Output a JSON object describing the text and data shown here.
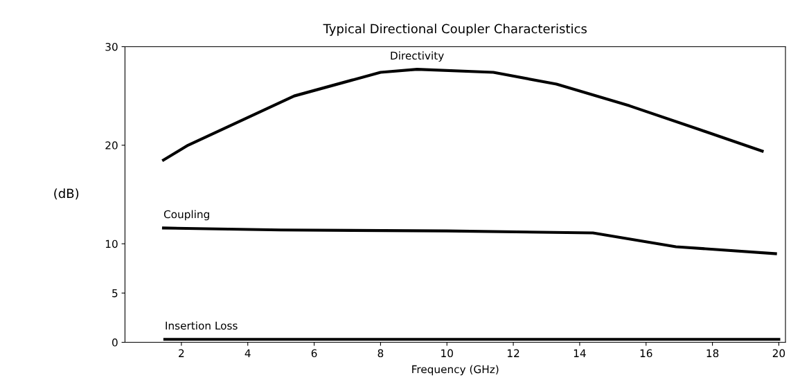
{
  "chart_data": {
    "type": "line",
    "title": "Typical Directional Coupler Characteristics",
    "xlabel": "Frequency (GHz)",
    "ylabel": "(dB)",
    "series": [
      {
        "name": "Directivity",
        "color": "#000000",
        "x": [
          1.46,
          2.2,
          5.4,
          8.0,
          9.1,
          11.4,
          13.3,
          15.5,
          17.6,
          19.5
        ],
        "values": [
          18.5,
          20,
          25,
          27.4,
          27.7,
          27.4,
          26.2,
          24,
          21.6,
          19.4
        ]
      },
      {
        "name": "Coupling",
        "color": "#000000",
        "x": [
          1.46,
          5.0,
          10.0,
          14.4,
          16.9,
          19.9
        ],
        "values": [
          11.6,
          11.4,
          11.3,
          11.1,
          9.7,
          9.0
        ]
      },
      {
        "name": "Insertion Loss",
        "color": "#000000",
        "x": [
          1.5,
          20.0
        ],
        "values": [
          0.3,
          0.3
        ]
      }
    ],
    "xlim": [
      0.3,
      20.2
    ],
    "xticks": [
      2,
      4,
      6,
      8,
      10,
      12,
      14,
      16,
      18,
      20
    ],
    "ylim": [
      0,
      30
    ],
    "yticks": [
      0,
      5,
      10,
      20,
      30
    ],
    "grid": false,
    "legend": false
  }
}
